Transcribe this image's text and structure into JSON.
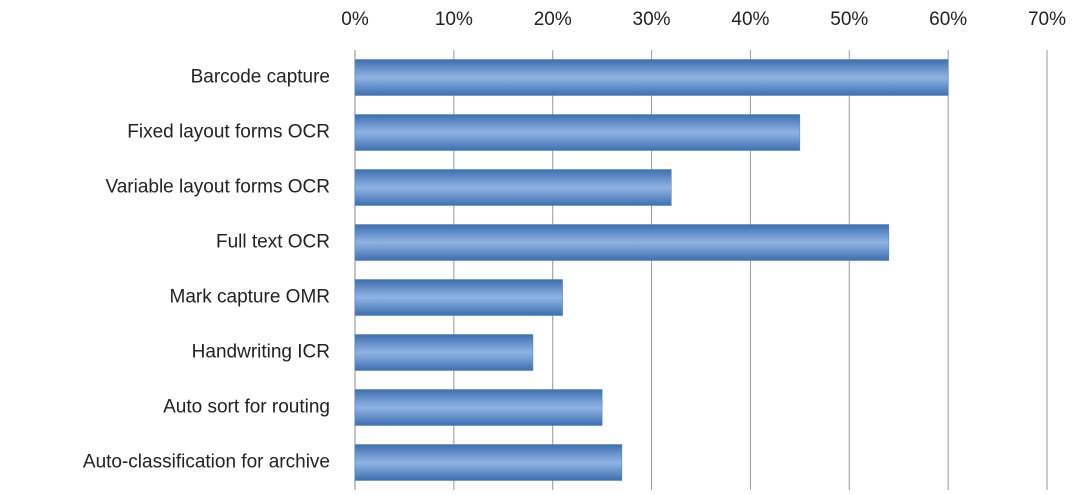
{
  "chart_data": {
    "type": "bar",
    "orientation": "horizontal",
    "categories": [
      "Barcode capture",
      "Fixed layout forms OCR",
      "Variable layout forms OCR",
      "Full text OCR",
      "Mark capture OMR",
      "Handwriting ICR",
      "Auto sort for routing",
      "Auto-classification for archive"
    ],
    "values": [
      60,
      45,
      32,
      54,
      21,
      18,
      25,
      27
    ],
    "color": "#4f81bd",
    "xlim": [
      0,
      70
    ],
    "xticks": [
      {
        "value": 0,
        "label": "0%"
      },
      {
        "value": 10,
        "label": "10%"
      },
      {
        "value": 20,
        "label": "20%"
      },
      {
        "value": 30,
        "label": "30%"
      },
      {
        "value": 40,
        "label": "40%"
      },
      {
        "value": 50,
        "label": "50%"
      },
      {
        "value": 60,
        "label": "60%"
      },
      {
        "value": 70,
        "label": "70%"
      }
    ],
    "grid": true
  }
}
